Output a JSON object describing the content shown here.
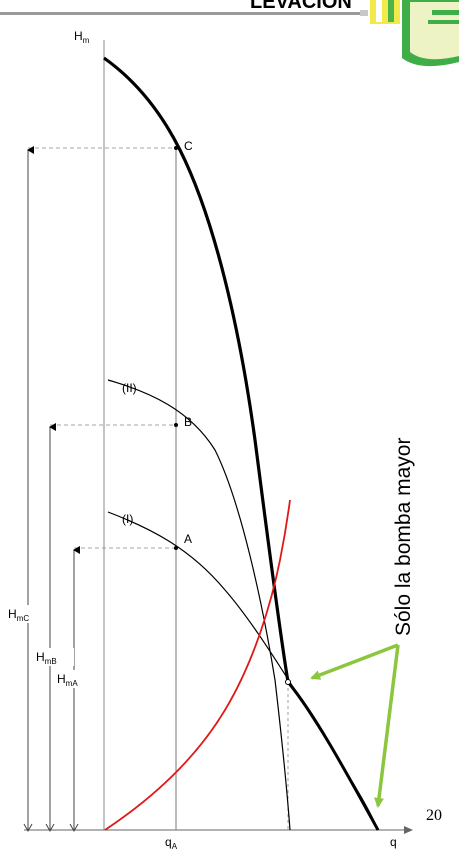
{
  "header": {
    "title_fragment": "LEVACIÓN"
  },
  "diagram": {
    "y_axis_label": "H",
    "y_axis_label_sub": "m",
    "x_axis_label": "q",
    "x_mark_label": "q",
    "x_mark_label_sub": "A",
    "point_labels": {
      "C": "C",
      "B": "B",
      "A": "A"
    },
    "curve_labels": {
      "II": "(II)",
      "I": "(I)"
    },
    "height_labels": [
      {
        "main": "H",
        "sub": "mC"
      },
      {
        "main": "H",
        "sub": "mB"
      },
      {
        "main": "H",
        "sub": "mA"
      }
    ],
    "annotation": "Sólo la bomba mayor",
    "colors": {
      "system_curve": "#e01818",
      "annotation_arrows": "#8cc63f",
      "curves": "#000000"
    }
  },
  "page_number": "20"
}
